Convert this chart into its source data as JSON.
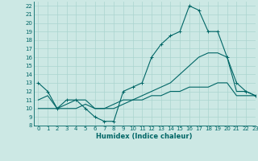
{
  "xlabel": "Humidex (Indice chaleur)",
  "bg_color": "#cce8e4",
  "line_color": "#006666",
  "grid_color": "#aad4cf",
  "xlim": [
    -0.5,
    23
  ],
  "ylim": [
    8,
    22.5
  ],
  "xticks": [
    0,
    1,
    2,
    3,
    4,
    5,
    6,
    7,
    8,
    9,
    10,
    11,
    12,
    13,
    14,
    15,
    16,
    17,
    18,
    19,
    20,
    21,
    22,
    23
  ],
  "yticks": [
    8,
    9,
    10,
    11,
    12,
    13,
    14,
    15,
    16,
    17,
    18,
    19,
    20,
    21,
    22
  ],
  "line1_x": [
    0,
    1,
    2,
    3,
    4,
    5,
    6,
    7,
    8,
    9,
    10,
    11,
    12,
    13,
    14,
    15,
    16,
    17,
    18,
    19,
    20,
    21,
    22,
    23
  ],
  "line1_y": [
    13,
    12,
    10,
    11,
    11,
    10,
    9,
    8.5,
    8.5,
    12,
    12.5,
    13,
    16,
    17.5,
    18.5,
    19,
    22,
    21.5,
    19,
    19,
    16,
    13,
    12,
    11.5
  ],
  "line2_x": [
    0,
    1,
    2,
    3,
    4,
    5,
    6,
    7,
    8,
    9,
    10,
    11,
    12,
    13,
    14,
    15,
    16,
    17,
    18,
    19,
    20,
    21,
    22,
    23
  ],
  "line2_y": [
    11,
    11.5,
    10,
    10.5,
    11,
    11,
    10,
    10,
    10.5,
    11,
    11,
    11.5,
    12,
    12.5,
    13,
    14,
    15,
    16,
    16.5,
    16.5,
    16,
    12,
    12,
    11.5
  ],
  "line3_x": [
    0,
    1,
    2,
    3,
    4,
    5,
    6,
    7,
    8,
    9,
    10,
    11,
    12,
    13,
    14,
    15,
    16,
    17,
    18,
    19,
    20,
    21,
    22,
    23
  ],
  "line3_y": [
    10,
    10,
    10,
    10,
    10,
    10.5,
    10,
    10,
    10,
    10.5,
    11,
    11,
    11.5,
    11.5,
    12,
    12,
    12.5,
    12.5,
    12.5,
    13,
    13,
    11.5,
    11.5,
    11.5
  ]
}
